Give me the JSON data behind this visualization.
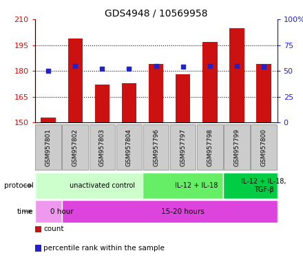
{
  "title": "GDS4948 / 10569958",
  "samples": [
    "GSM957801",
    "GSM957802",
    "GSM957803",
    "GSM957804",
    "GSM957796",
    "GSM957797",
    "GSM957798",
    "GSM957799",
    "GSM957800"
  ],
  "counts": [
    153,
    199,
    172,
    173,
    184,
    178,
    197,
    205,
    184
  ],
  "percentile_ranks": [
    50,
    55,
    52,
    52,
    55,
    54,
    55,
    55,
    54
  ],
  "ylim_left": [
    150,
    210
  ],
  "ylim_right": [
    0,
    100
  ],
  "yticks_left": [
    150,
    165,
    180,
    195,
    210
  ],
  "yticks_right": [
    0,
    25,
    50,
    75,
    100
  ],
  "bar_color": "#cc1111",
  "dot_color": "#2222cc",
  "bar_bottom": 150,
  "protocol_groups": [
    {
      "label": "unactivated control",
      "start": 0,
      "end": 4,
      "color": "#ccffcc"
    },
    {
      "label": "IL-12 + IL-18",
      "start": 4,
      "end": 7,
      "color": "#66ee66"
    },
    {
      "label": "IL-12 + IL-18,\nTGF-β",
      "start": 7,
      "end": 9,
      "color": "#00cc44"
    }
  ],
  "time_groups": [
    {
      "label": "0 hour",
      "start": 0,
      "end": 1,
      "color": "#ee99ee"
    },
    {
      "label": "15-20 hours",
      "start": 1,
      "end": 9,
      "color": "#dd44dd"
    }
  ],
  "legend_count_color": "#cc1111",
  "legend_pct_color": "#2222cc",
  "left_axis_color": "#cc1111",
  "right_axis_color": "#2222cc",
  "tick_label_bg": "#cccccc",
  "bar_width": 0.55,
  "dotted_yticks": [
    165,
    180,
    195
  ]
}
